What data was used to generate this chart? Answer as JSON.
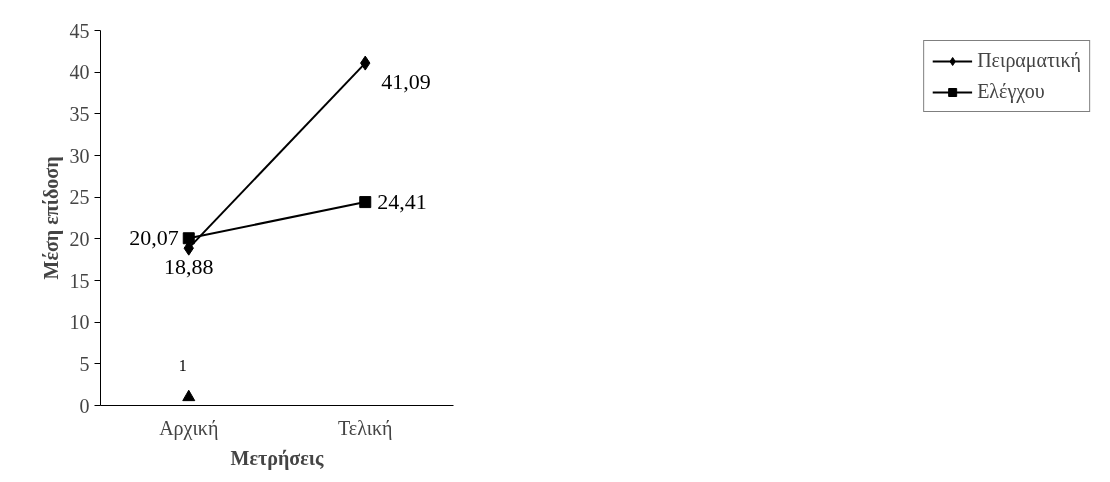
{
  "chart_data": {
    "type": "line",
    "xlabel": "Μετρήσεις",
    "ylabel": "Μέση επίδοση",
    "categories": [
      "Αρχική",
      "Τελική"
    ],
    "ylim": [
      0,
      45
    ],
    "yticks": [
      0,
      5,
      10,
      15,
      20,
      25,
      30,
      35,
      40,
      45
    ],
    "grid": false,
    "legend": "right",
    "series": [
      {
        "name": "Πειραματική",
        "color": "#000000",
        "marker": "diamond",
        "values": [
          18.88,
          41.09
        ],
        "value_labels": [
          "18,88",
          "41,09"
        ]
      },
      {
        "name": "Ελέγχου",
        "color": "#000000",
        "marker": "square",
        "values": [
          20.07,
          24.41
        ],
        "value_labels": [
          "20,07",
          "24,41"
        ]
      },
      {
        "type": "scatter",
        "color": "#000000",
        "marker": "triangle",
        "values": [
          1,
          null
        ],
        "value_labels": [
          "1",
          null
        ]
      }
    ]
  }
}
